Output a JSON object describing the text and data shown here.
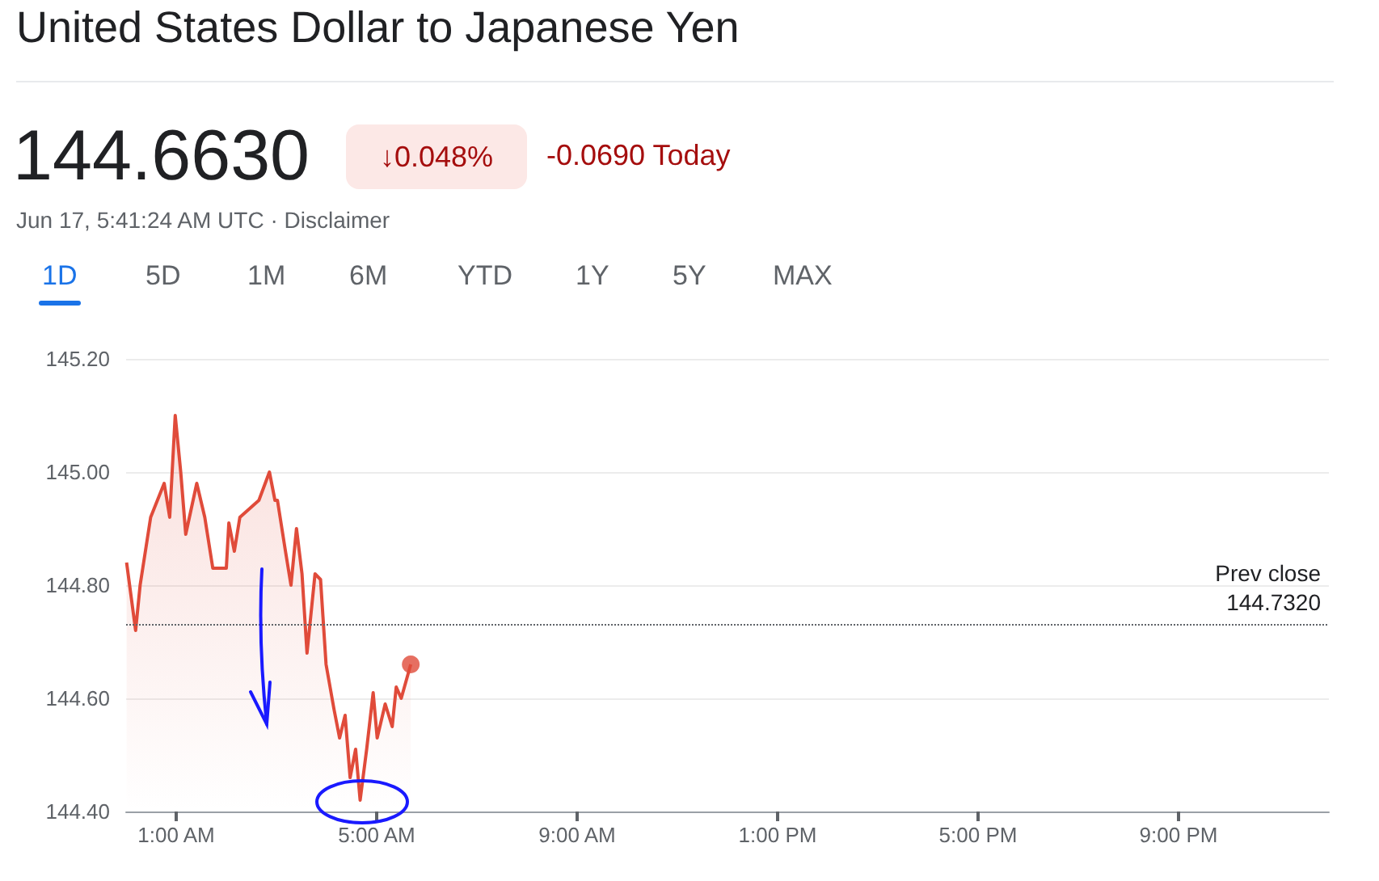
{
  "chart_data": {
    "type": "area",
    "title": "United States Dollar to Japanese Yen",
    "annotations": [
      "144.6630",
      "↓0.048%",
      "-0.0690 Today",
      "Jun 17, 5:41:24 AM UTC · Disclaimer",
      "1D",
      "5D",
      "1M",
      "6M",
      "YTD",
      "1Y",
      "5Y",
      "MAX"
    ],
    "series": [
      {
        "marker": "none",
        "color": "#e04b3a",
        "x": [
          0.01,
          0.19,
          0.28,
          0.49,
          0.76,
          0.87,
          0.98,
          1.09,
          1.19,
          1.41,
          1.57,
          1.73,
          2.0,
          2.05,
          2.16,
          2.27,
          2.65,
          2.86,
          2.97,
          3.02,
          3.18,
          3.29,
          3.4,
          3.51,
          3.61,
          3.77,
          3.88,
          3.99,
          4.15,
          4.26,
          4.37,
          4.47,
          4.58,
          4.67,
          4.8,
          4.93,
          5.01,
          5.17,
          5.31,
          5.39,
          5.49,
          5.68
        ],
        "values": [
          144.84,
          144.72,
          144.8,
          144.92,
          144.98,
          144.92,
          145.1,
          145.0,
          144.89,
          144.98,
          144.92,
          144.83,
          144.83,
          144.91,
          144.86,
          144.92,
          144.95,
          145.0,
          144.95,
          144.95,
          144.86,
          144.8,
          144.9,
          144.82,
          144.68,
          144.82,
          144.81,
          144.66,
          144.58,
          144.53,
          144.57,
          144.46,
          144.51,
          144.42,
          144.51,
          144.61,
          144.53,
          144.59,
          144.55,
          144.62,
          144.6,
          144.66
        ]
      },
      {
        "type": "scatter",
        "marker": "circle",
        "color": "#e04b3a",
        "x": [
          5.68
        ],
        "values": [
          144.66
        ]
      }
    ],
    "xlim": [
      0,
      24
    ],
    "xticks": [
      {
        "value": 1,
        "label": "1:00 AM"
      },
      {
        "value": 5,
        "label": "5:00 AM"
      },
      {
        "value": 9,
        "label": "9:00 AM"
      },
      {
        "value": 13,
        "label": "1:00 PM"
      },
      {
        "value": 17,
        "label": "5:00 PM"
      },
      {
        "value": 21,
        "label": "9:00 PM"
      }
    ],
    "ylim": [
      144.4,
      145.2
    ],
    "yticks": [
      {
        "value": 144.4,
        "label": "144.40"
      },
      {
        "value": 144.6,
        "label": "144.60"
      },
      {
        "value": 144.8,
        "label": "144.80"
      },
      {
        "value": 145.0,
        "label": "145.00"
      },
      {
        "value": 145.2,
        "label": "145.20"
      }
    ],
    "ref_lines": [
      {
        "axis": "y",
        "value": 144.732,
        "label": "Prev close\n144.7320",
        "color": "#5f6368",
        "line_style": "dotted"
      }
    ],
    "grid": "y"
  }
}
